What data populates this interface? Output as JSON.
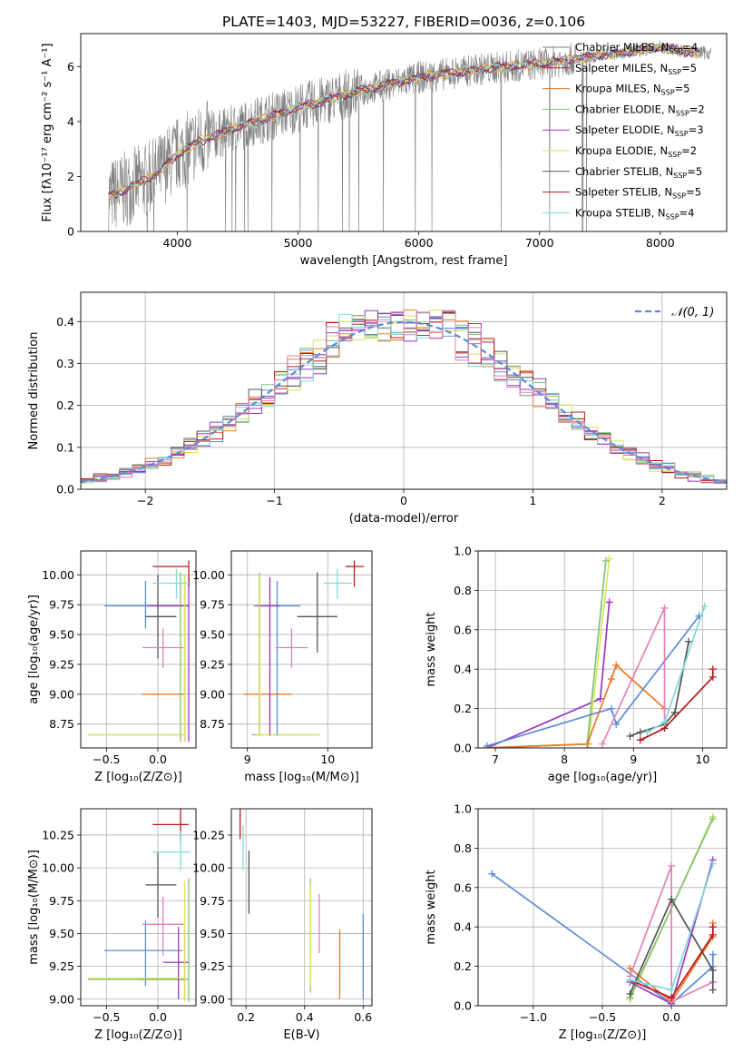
{
  "colors": {
    "chabrier_miles": "#5b8bd8",
    "salpeter_miles": "#8e3fb5",
    "kroupa_miles": "#e8782a",
    "chabrier_elodie": "#7ec27a",
    "salpeter_elodie": "#9c35c0",
    "kroupa_elodie": "#d8e45a",
    "chabrier_stelib": "#555555",
    "salpeter_stelib": "#b81a1a",
    "kroupa_stelib": "#7fd8dc",
    "data": "#808080",
    "gaussian": "#5b8bd8",
    "pink": "#e47fb6"
  },
  "chart_data": [
    {
      "id": "spectrum",
      "type": "line",
      "title": "PLATE=1403, MJD=53227, FIBERID=0036, z=0.106",
      "xlabel": "wavelength [Angstrom, rest frame]",
      "ylabel": "Flux [fλ10⁻¹⁷ erg cm⁻² s⁻¹ A⁻¹]",
      "xlim": [
        3200,
        8550
      ],
      "ylim": [
        0,
        7.2
      ],
      "xticks": [
        4000,
        5000,
        6000,
        7000,
        8000
      ],
      "yticks": [
        0,
        2,
        4,
        6
      ],
      "legend_position": "upper-right",
      "legend": [
        {
          "label": "Chabrier MILES, N_SSP=4",
          "text": "Chabrier MILES, N",
          "sub": "SSP",
          "post": "=4",
          "color_key": "data"
        },
        {
          "label": "Salpeter MILES, N_SSP=5",
          "text": "Salpeter MILES, N",
          "sub": "SSP",
          "post": "=5",
          "color_key": "salpeter_stelib"
        },
        {
          "label": "Kroupa MILES, N_SSP=5",
          "text": "Kroupa MILES, N",
          "sub": "SSP",
          "post": "=5",
          "color_key": "kroupa_miles"
        },
        {
          "label": "Chabrier ELODIE, N_SSP=2",
          "text": "Chabrier ELODIE, N",
          "sub": "SSP",
          "post": "=2",
          "color_key": "chabrier_elodie"
        },
        {
          "label": "Salpeter ELODIE, N_SSP=3",
          "text": "Salpeter ELODIE, N",
          "sub": "SSP",
          "post": "=3",
          "color_key": "salpeter_elodie"
        },
        {
          "label": "Kroupa ELODIE, N_SSP=2",
          "text": "Kroupa ELODIE, N",
          "sub": "SSP",
          "post": "=2",
          "color_key": "kroupa_elodie"
        },
        {
          "label": "Chabrier STELIB, N_SSP=5",
          "text": "Chabrier STELIB, N",
          "sub": "SSP",
          "post": "=5",
          "color_key": "chabrier_stelib"
        },
        {
          "label": "Salpeter STELIB, N_SSP=5",
          "text": "Salpeter STELIB, N",
          "sub": "SSP",
          "post": "=5",
          "color_key": "salpeter_stelib"
        },
        {
          "label": "Kroupa STELIB, N_SSP=4",
          "text": "Kroupa STELIB, N",
          "sub": "SSP",
          "post": "=4",
          "color_key": "kroupa_stelib"
        }
      ],
      "model_continuum": {
        "x": [
          3450,
          3600,
          3800,
          4000,
          4200,
          4500,
          5000,
          5500,
          6000,
          6500,
          7000,
          7500,
          8000,
          8300
        ],
        "y": [
          1.3,
          1.6,
          2.0,
          2.8,
          3.3,
          3.8,
          4.5,
          5.1,
          5.6,
          5.9,
          6.1,
          6.4,
          6.7,
          6.5
        ]
      }
    },
    {
      "id": "residuals",
      "type": "line",
      "xlabel": "(data-model)/error",
      "ylabel": "Normed distribution",
      "xlim": [
        -2.5,
        2.5
      ],
      "ylim": [
        0,
        0.47
      ],
      "xticks": [
        -2,
        -1,
        0,
        1,
        2
      ],
      "yticks": [
        0.0,
        0.1,
        0.2,
        0.3,
        0.4
      ],
      "legend_position": "upper-right",
      "legend": [
        {
          "label": "N(0,1)",
          "text": "𝒩(0, 1)"
        }
      ],
      "series_step": "histograms (one per model), 0.1-wide bins around standard normal"
    },
    {
      "id": "age_vs_z",
      "type": "scatter",
      "xlabel": "Z [log₁₀(Z/Z⊙)]",
      "ylabel": "age  [log₁₀(age/yr)]",
      "xlim": [
        -0.75,
        0.37
      ],
      "ylim": [
        8.55,
        10.2
      ],
      "xticks": [
        -0.5,
        0.0
      ],
      "yticks": [
        8.75,
        9.0,
        9.25,
        9.5,
        9.75,
        10.0
      ],
      "points": [
        {
          "color_key": "chabrier_miles",
          "x": -0.12,
          "y": 9.74,
          "xe": [
            -0.52,
            0.24
          ],
          "ye": [
            9.55,
            9.95
          ]
        },
        {
          "color_key": "kroupa_miles",
          "x": 0.26,
          "y": 9.0,
          "xe": [
            -0.16,
            0.26
          ],
          "ye": [
            8.6,
            10.0
          ]
        },
        {
          "color_key": "chabrier_elodie",
          "x": 0.22,
          "y": 8.66,
          "xe": [
            -0.68,
            0.26
          ],
          "ye": [
            8.6,
            10.02
          ]
        },
        {
          "color_key": "salpeter_elodie",
          "x": 0.3,
          "y": 9.74,
          "xe": [
            -0.1,
            0.3
          ],
          "ye": [
            8.6,
            9.98
          ]
        },
        {
          "color_key": "kroupa_elodie",
          "x": 0.26,
          "y": 8.66,
          "xe": [
            -0.68,
            0.26
          ],
          "ye": [
            8.6,
            10.0
          ]
        },
        {
          "color_key": "chabrier_stelib",
          "x": 0.0,
          "y": 9.65,
          "xe": [
            -0.12,
            0.18
          ],
          "ye": [
            9.3,
            10.0
          ]
        },
        {
          "color_key": "salpeter_stelib",
          "x": 0.3,
          "y": 10.07,
          "xe": [
            -0.05,
            0.3
          ],
          "ye": [
            9.9,
            10.12
          ]
        },
        {
          "color_key": "kroupa_stelib",
          "x": 0.18,
          "y": 9.93,
          "xe": [
            -0.05,
            0.32
          ],
          "ye": [
            9.8,
            10.05
          ]
        },
        {
          "color_key": "pink",
          "x": 0.05,
          "y": 9.39,
          "xe": [
            -0.15,
            0.25
          ],
          "ye": [
            9.22,
            9.55
          ]
        }
      ]
    },
    {
      "id": "age_vs_mass",
      "type": "scatter",
      "xlabel": "mass [log₁₀(M/M⊙)]",
      "ylabel": "",
      "xlim": [
        8.8,
        10.55
      ],
      "ylim": [
        8.55,
        10.2
      ],
      "xticks": [
        9,
        10
      ],
      "yticks": [
        8.75,
        9.0,
        9.25,
        9.5,
        9.75,
        10.0
      ],
      "points": [
        {
          "color_key": "chabrier_miles",
          "x": 9.37,
          "y": 9.74,
          "xe": [
            9.08,
            9.66
          ],
          "ye": [
            8.65,
            9.95
          ]
        },
        {
          "color_key": "kroupa_miles",
          "x": 9.15,
          "y": 9.0,
          "xe": [
            8.95,
            9.55
          ],
          "ye": [
            8.65,
            9.98
          ]
        },
        {
          "color_key": "chabrier_elodie",
          "x": 9.15,
          "y": 8.66,
          "xe": [
            9.05,
            9.9
          ],
          "ye": [
            8.65,
            10.02
          ]
        },
        {
          "color_key": "salpeter_elodie",
          "x": 9.28,
          "y": 9.74,
          "xe": [
            9.12,
            9.4
          ],
          "ye": [
            8.65,
            9.98
          ]
        },
        {
          "color_key": "kroupa_elodie",
          "x": 9.15,
          "y": 8.66,
          "xe": [
            9.12,
            9.9
          ],
          "ye": [
            8.65,
            10.0
          ]
        },
        {
          "color_key": "chabrier_stelib",
          "x": 9.87,
          "y": 9.65,
          "xe": [
            9.62,
            10.12
          ],
          "ye": [
            9.35,
            10.02
          ]
        },
        {
          "color_key": "salpeter_stelib",
          "x": 10.33,
          "y": 10.07,
          "xe": [
            10.22,
            10.45
          ],
          "ye": [
            9.9,
            10.12
          ]
        },
        {
          "color_key": "kroupa_stelib",
          "x": 10.12,
          "y": 9.93,
          "xe": [
            9.95,
            10.3
          ],
          "ye": [
            9.8,
            10.05
          ]
        },
        {
          "color_key": "pink",
          "x": 9.55,
          "y": 9.39,
          "xe": [
            9.35,
            9.75
          ],
          "ye": [
            9.22,
            9.55
          ]
        }
      ]
    },
    {
      "id": "weight_vs_age",
      "type": "line",
      "xlabel": "age  [log₁₀(age/yr)]",
      "ylabel": "mass weight",
      "xlim": [
        6.75,
        10.35
      ],
      "ylim": [
        0,
        1.0
      ],
      "xticks": [
        7,
        8,
        9,
        10
      ],
      "yticks": [
        0.0,
        0.2,
        0.4,
        0.6,
        0.8,
        1.0
      ],
      "series": [
        {
          "color_key": "salpeter_elodie",
          "x": [
            6.88,
            8.52,
            8.65
          ],
          "y": [
            0.0,
            0.25,
            0.74
          ]
        },
        {
          "color_key": "kroupa_elodie",
          "x": [
            6.88,
            8.35,
            8.65
          ],
          "y": [
            0.0,
            0.02,
            0.96
          ]
        },
        {
          "color_key": "chabrier_elodie",
          "x": [
            6.88,
            8.33,
            8.6
          ],
          "y": [
            0.0,
            0.02,
            0.95
          ]
        },
        {
          "color_key": "kroupa_miles",
          "x": [
            6.88,
            8.33,
            8.68,
            8.75,
            9.45
          ],
          "y": [
            0.0,
            0.02,
            0.35,
            0.42,
            0.2
          ]
        },
        {
          "color_key": "chabrier_miles",
          "x": [
            6.88,
            8.68,
            8.75,
            9.95
          ],
          "y": [
            0.01,
            0.2,
            0.12,
            0.67
          ]
        },
        {
          "color_key": "pink",
          "x": [
            8.55,
            9.45,
            9.45
          ],
          "y": [
            0.02,
            0.71,
            0.12
          ]
        },
        {
          "color_key": "chabrier_stelib",
          "x": [
            8.95,
            9.1,
            9.45,
            9.6,
            9.8
          ],
          "y": [
            0.06,
            0.08,
            0.12,
            0.18,
            0.54
          ]
        },
        {
          "color_key": "salpeter_stelib",
          "x": [
            9.1,
            9.45,
            10.15,
            10.15
          ],
          "y": [
            0.04,
            0.1,
            0.36,
            0.4
          ]
        },
        {
          "color_key": "kroupa_stelib",
          "x": [
            9.2,
            9.45,
            10.03
          ],
          "y": [
            0.08,
            0.13,
            0.72
          ]
        }
      ]
    },
    {
      "id": "mass_vs_z",
      "type": "scatter",
      "xlabel": "Z [log₁₀(Z/Z⊙)]",
      "ylabel": "mass [log₁₀(M/M⊙)]",
      "xlim": [
        -0.75,
        0.37
      ],
      "ylim": [
        8.95,
        10.45
      ],
      "xticks": [
        -0.5,
        0.0
      ],
      "yticks": [
        9.0,
        9.25,
        9.5,
        9.75,
        10.0,
        10.25
      ],
      "points": [
        {
          "color_key": "chabrier_miles",
          "x": -0.12,
          "y": 9.37,
          "xe": [
            -0.52,
            0.24
          ],
          "ye": [
            9.1,
            9.6
          ]
        },
        {
          "color_key": "kroupa_miles",
          "x": 0.26,
          "y": 9.15,
          "xe": [
            -0.16,
            0.26
          ],
          "ye": [
            9.0,
            9.53
          ]
        },
        {
          "color_key": "chabrier_elodie",
          "x": 0.3,
          "y": 9.15,
          "xe": [
            -0.68,
            0.3
          ],
          "ye": [
            8.98,
            9.92
          ]
        },
        {
          "color_key": "salpeter_elodie",
          "x": 0.2,
          "y": 9.28,
          "xe": [
            0.05,
            0.3
          ],
          "ye": [
            9.0,
            9.55
          ]
        },
        {
          "color_key": "kroupa_elodie",
          "x": 0.26,
          "y": 9.16,
          "xe": [
            -0.68,
            0.26
          ],
          "ye": [
            8.98,
            9.9
          ]
        },
        {
          "color_key": "chabrier_stelib",
          "x": 0.0,
          "y": 9.87,
          "xe": [
            -0.12,
            0.18
          ],
          "ye": [
            9.62,
            10.12
          ]
        },
        {
          "color_key": "salpeter_stelib",
          "x": 0.22,
          "y": 10.33,
          "xe": [
            -0.05,
            0.3
          ],
          "ye": [
            10.2,
            10.45
          ]
        },
        {
          "color_key": "kroupa_stelib",
          "x": 0.22,
          "y": 10.12,
          "xe": [
            -0.05,
            0.32
          ],
          "ye": [
            9.98,
            10.28
          ]
        },
        {
          "color_key": "pink",
          "x": 0.05,
          "y": 9.57,
          "xe": [
            -0.15,
            0.25
          ],
          "ye": [
            9.33,
            9.78
          ]
        }
      ]
    },
    {
      "id": "mass_vs_ebv",
      "type": "scatter",
      "xlabel": "E(B-V)",
      "ylabel": "",
      "xlim": [
        0.15,
        0.63
      ],
      "ylim": [
        8.95,
        10.45
      ],
      "xticks": [
        0.2,
        0.4,
        0.6
      ],
      "yticks": [
        9.0,
        9.25,
        9.5,
        9.75,
        10.0,
        10.25
      ],
      "points": [
        {
          "color_key": "chabrier_miles",
          "x": 0.6,
          "y": 9.37,
          "xe": [
            0.6,
            0.6
          ],
          "ye": [
            9.0,
            9.65
          ]
        },
        {
          "color_key": "kroupa_miles",
          "x": 0.52,
          "y": 9.15,
          "xe": [
            0.52,
            0.52
          ],
          "ye": [
            9.0,
            9.53
          ]
        },
        {
          "color_key": "chabrier_elodie",
          "x": 0.42,
          "y": 9.5,
          "xe": [
            0.42,
            0.42
          ],
          "ye": [
            9.05,
            9.92
          ]
        },
        {
          "color_key": "kroupa_elodie",
          "x": 0.42,
          "y": 9.45,
          "xe": [
            0.42,
            0.42
          ],
          "ye": [
            9.1,
            9.88
          ]
        },
        {
          "color_key": "chabrier_stelib",
          "x": 0.21,
          "y": 9.87,
          "xe": [
            0.21,
            0.21
          ],
          "ye": [
            9.65,
            10.13
          ]
        },
        {
          "color_key": "salpeter_stelib",
          "x": 0.18,
          "y": 10.33,
          "xe": [
            0.18,
            0.18
          ],
          "ye": [
            10.22,
            10.45
          ]
        },
        {
          "color_key": "kroupa_stelib",
          "x": 0.19,
          "y": 10.12,
          "xe": [
            0.19,
            0.19
          ],
          "ye": [
            9.98,
            10.32
          ]
        },
        {
          "color_key": "pink",
          "x": 0.45,
          "y": 9.57,
          "xe": [
            0.45,
            0.45
          ],
          "ye": [
            9.35,
            9.8
          ]
        }
      ]
    },
    {
      "id": "weight_vs_z",
      "type": "line",
      "xlabel": "Z [log₁₀(Z/Z⊙)]",
      "ylabel": "mass weight",
      "xlim": [
        -1.4,
        0.4
      ],
      "ylim": [
        0,
        1.0
      ],
      "xticks": [
        -1.0,
        -0.5,
        0.0
      ],
      "yticks": [
        0.0,
        0.2,
        0.4,
        0.6,
        0.8,
        1.0
      ],
      "series": [
        {
          "color_key": "chabrier_miles",
          "x": [
            -1.3,
            0.0,
            0.3,
            0.3,
            0.3
          ],
          "y": [
            0.67,
            0.01,
            0.2,
            0.26,
            0.12
          ]
        },
        {
          "color_key": "kroupa_elodie",
          "x": [
            -0.3,
            0.3
          ],
          "y": [
            0.03,
            0.96
          ]
        },
        {
          "color_key": "chabrier_elodie",
          "x": [
            -0.3,
            0.3
          ],
          "y": [
            0.04,
            0.95
          ]
        },
        {
          "color_key": "salpeter_elodie",
          "x": [
            -0.3,
            0.0,
            0.3
          ],
          "y": [
            0.12,
            0.01,
            0.74
          ]
        },
        {
          "color_key": "kroupa_miles",
          "x": [
            -0.3,
            0.0,
            0.3,
            0.3
          ],
          "y": [
            0.19,
            0.02,
            0.35,
            0.42
          ]
        },
        {
          "color_key": "pink",
          "x": [
            -0.3,
            0.0,
            0.0,
            0.3
          ],
          "y": [
            0.15,
            0.71,
            0.02,
            0.12
          ]
        },
        {
          "color_key": "chabrier_stelib",
          "x": [
            -0.3,
            0.0,
            0.3,
            0.3
          ],
          "y": [
            0.06,
            0.54,
            0.18,
            0.08
          ]
        },
        {
          "color_key": "salpeter_stelib",
          "x": [
            -0.3,
            0.0,
            0.3,
            0.3
          ],
          "y": [
            0.13,
            0.04,
            0.36,
            0.4
          ]
        },
        {
          "color_key": "kroupa_stelib",
          "x": [
            -0.3,
            0.0,
            0.3
          ],
          "y": [
            0.13,
            0.08,
            0.72
          ]
        }
      ]
    }
  ]
}
